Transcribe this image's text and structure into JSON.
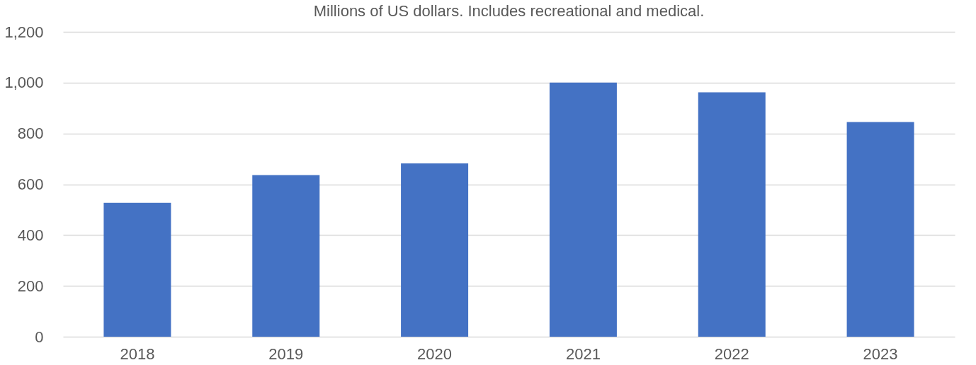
{
  "chart_data": {
    "type": "bar",
    "subtitle": "Millions of US dollars. Includes recreational and medical.",
    "categories": [
      "2018",
      "2019",
      "2020",
      "2021",
      "2022",
      "2023"
    ],
    "values": [
      527,
      636,
      682,
      1000,
      962,
      845
    ],
    "color": "#4472c4",
    "ylim": [
      0,
      1200
    ],
    "yticks": [
      {
        "value": 0,
        "label": "0"
      },
      {
        "value": 200,
        "label": "200"
      },
      {
        "value": 400,
        "label": "400"
      },
      {
        "value": 600,
        "label": "600"
      },
      {
        "value": 800,
        "label": "800"
      },
      {
        "value": 1000,
        "label": "1,000"
      },
      {
        "value": 1200,
        "label": "1,200"
      }
    ],
    "grid": "y"
  }
}
